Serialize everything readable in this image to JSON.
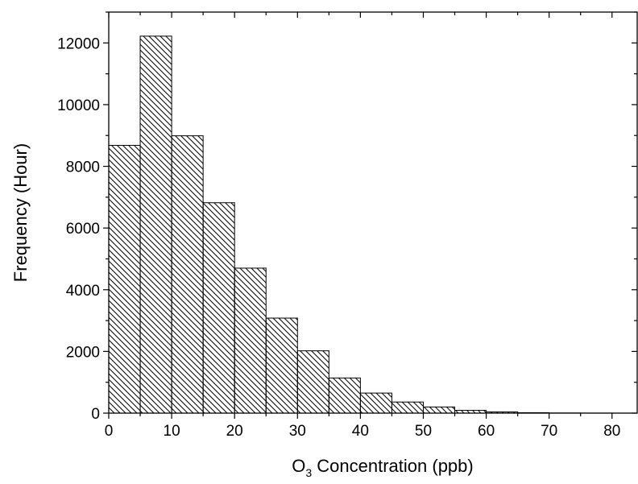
{
  "chart_data": {
    "type": "bar",
    "subtype": "histogram",
    "bin_width": 5,
    "bins": [
      {
        "start": 0,
        "end": 5,
        "value": 8680
      },
      {
        "start": 5,
        "end": 10,
        "value": 12220
      },
      {
        "start": 10,
        "end": 15,
        "value": 8990
      },
      {
        "start": 15,
        "end": 20,
        "value": 6820
      },
      {
        "start": 20,
        "end": 25,
        "value": 4700
      },
      {
        "start": 25,
        "end": 30,
        "value": 3080
      },
      {
        "start": 30,
        "end": 35,
        "value": 2020
      },
      {
        "start": 35,
        "end": 40,
        "value": 1140
      },
      {
        "start": 40,
        "end": 45,
        "value": 650
      },
      {
        "start": 45,
        "end": 50,
        "value": 360
      },
      {
        "start": 50,
        "end": 55,
        "value": 200
      },
      {
        "start": 55,
        "end": 60,
        "value": 90
      },
      {
        "start": 60,
        "end": 65,
        "value": 40
      },
      {
        "start": 65,
        "end": 70,
        "value": 15
      },
      {
        "start": 70,
        "end": 75,
        "value": 5
      },
      {
        "start": 75,
        "end": 80,
        "value": 2
      },
      {
        "start": 80,
        "end": 85,
        "value": 1
      }
    ],
    "xlabel": {
      "main": "O",
      "sub": "3",
      "rest": " Concentration (ppb)"
    },
    "ylabel": "Frequency (Hour)",
    "xlim": [
      0,
      84
    ],
    "ylim": [
      0,
      13000
    ],
    "xticks": [
      0,
      10,
      20,
      30,
      40,
      50,
      60,
      70,
      80
    ],
    "yticks": [
      0,
      2000,
      4000,
      6000,
      8000,
      10000,
      12000
    ],
    "bar_fill": "diagonal-hatch",
    "colors": {
      "bar_stroke": "#000000",
      "hatch": "#000000",
      "background": "#ffffff"
    },
    "grid": false,
    "legend": "none"
  }
}
